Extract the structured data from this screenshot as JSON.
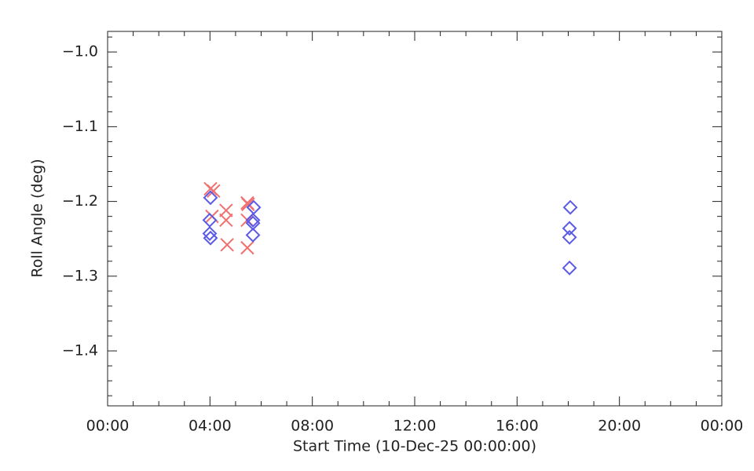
{
  "chart_data": {
    "type": "scatter",
    "xlabel": "Start Time (10-Dec-25 00:00:00)",
    "ylabel": "Roll Angle (deg)",
    "xlim": [
      0,
      24
    ],
    "ylim": [
      -1.4735,
      -0.9725
    ],
    "xticks": [
      {
        "value": 0,
        "label": "00:00"
      },
      {
        "value": 4,
        "label": "04:00"
      },
      {
        "value": 8,
        "label": "08:00"
      },
      {
        "value": 12,
        "label": "12:00"
      },
      {
        "value": 16,
        "label": "16:00"
      },
      {
        "value": 20,
        "label": "20:00"
      },
      {
        "value": 24,
        "label": "00:00"
      }
    ],
    "yticks": [
      {
        "value": -1.0,
        "label": "−1.0"
      },
      {
        "value": -1.1,
        "label": "−1.1"
      },
      {
        "value": -1.2,
        "label": "−1.2"
      },
      {
        "value": -1.3,
        "label": "−1.3"
      },
      {
        "value": -1.4,
        "label": "−1.4"
      }
    ],
    "xminorticks": [
      1,
      2,
      3,
      5,
      6,
      7,
      9,
      10,
      11,
      13,
      14,
      15,
      17,
      18,
      19,
      21,
      22,
      23
    ],
    "yminorticks": [
      -0.98,
      -1.02,
      -1.04,
      -1.06,
      -1.08,
      -1.12,
      -1.14,
      -1.16,
      -1.18,
      -1.22,
      -1.24,
      -1.26,
      -1.28,
      -1.32,
      -1.34,
      -1.36,
      -1.38,
      -1.42,
      -1.44,
      -1.46
    ],
    "series": [
      {
        "marker": "x",
        "color": "#f07070",
        "x": [
          4.02,
          4.14,
          4.08,
          4.63,
          4.63,
          4.67,
          5.46,
          5.49,
          5.46,
          5.46
        ],
        "values": [
          -1.183,
          -1.186,
          -1.22,
          -1.212,
          -1.225,
          -1.258,
          -1.202,
          -1.204,
          -1.225,
          -1.262
        ]
      },
      {
        "marker": "diamond",
        "color": "#5a5ae6",
        "x": [
          4.02,
          3.99,
          3.99,
          4.02,
          5.71,
          5.68,
          5.68,
          5.68,
          18.08,
          18.05,
          18.05,
          18.05
        ],
        "values": [
          -1.195,
          -1.225,
          -1.243,
          -1.249,
          -1.208,
          -1.225,
          -1.229,
          -1.245,
          -1.208,
          -1.236,
          -1.248,
          -1.289
        ]
      }
    ]
  }
}
